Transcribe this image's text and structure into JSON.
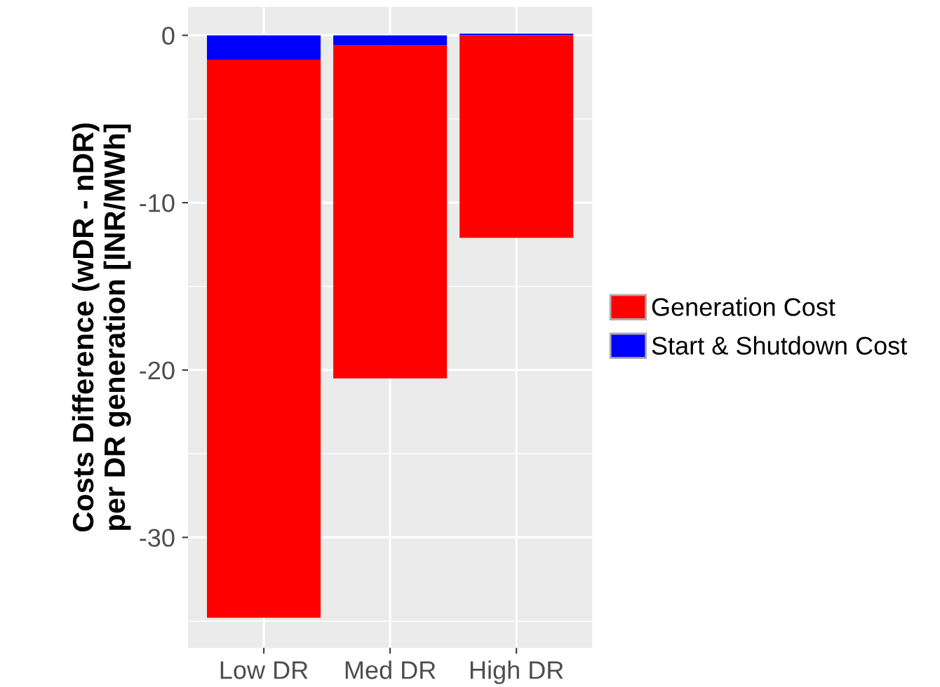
{
  "chart_data": {
    "type": "bar",
    "stacked": true,
    "ylabel": "Costs Difference (wDR - nDR)\nper DR generation [INR/MWh]",
    "categories": [
      "Low DR",
      "Med DR",
      "High DR"
    ],
    "series": [
      {
        "name": "Start & Shutdown Cost",
        "color": "#0000ff",
        "values": [
          -1.45,
          -0.6,
          0.1
        ]
      },
      {
        "name": "Generation Cost",
        "color": "#ff0000",
        "values": [
          -33.35,
          -19.9,
          -12.1
        ]
      }
    ],
    "ylim": [
      -36.6,
      1.7
    ],
    "yticks": [
      -30,
      -20,
      -10,
      0
    ],
    "grid": true,
    "legend": "right"
  }
}
